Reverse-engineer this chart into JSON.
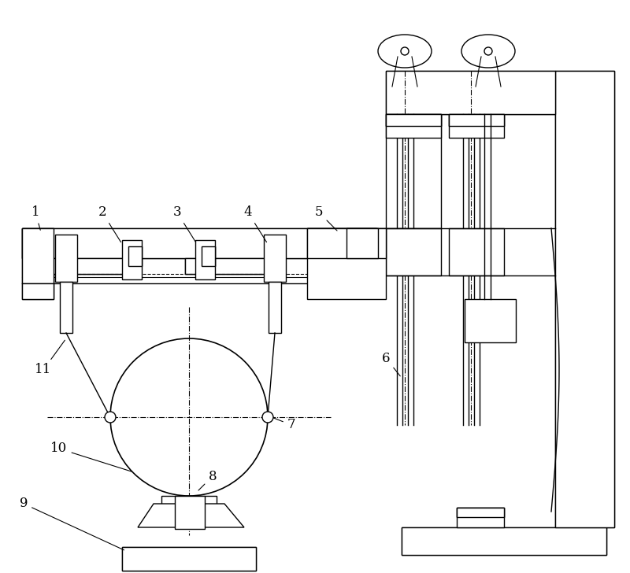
{
  "bg_color": "#ffffff",
  "line_color": "#000000",
  "fig_width": 8.0,
  "fig_height": 7.28,
  "dpi": 100
}
